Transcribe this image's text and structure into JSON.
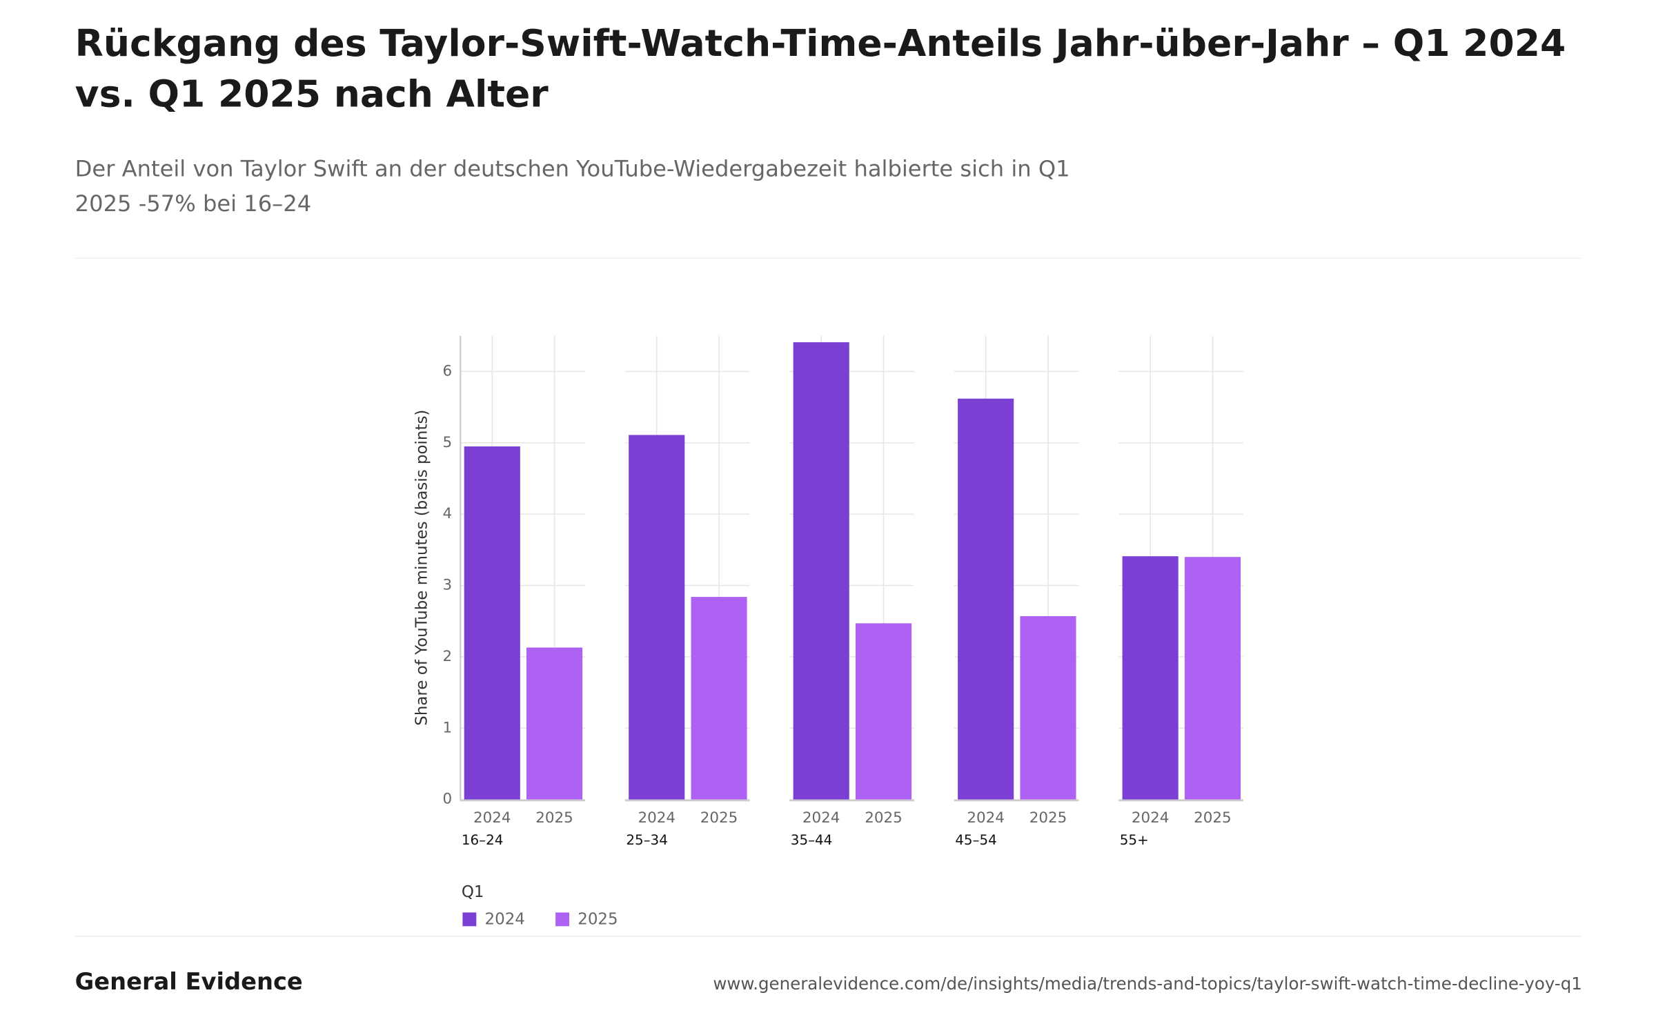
{
  "chart_data": {
    "type": "bar",
    "title": "Rückgang des Taylor-Swift-Watch-Time-Anteils Jahr-über-Jahr – Q1 2024 vs. Q1 2025 nach Alter",
    "subtitle": "Der Anteil von Taylor Swift an der deutschen YouTube-Wiedergabezeit halbierte sich in Q1 2025 -57% bei 16–24",
    "ylabel": "Share of YouTube minutes (basis points)",
    "categories": [
      "16–24",
      "25–34",
      "35–44",
      "45–54",
      "55+"
    ],
    "series": [
      {
        "name": "2024",
        "color": "#7b3fd4",
        "values": [
          4.95,
          5.11,
          6.41,
          5.62,
          3.41
        ]
      },
      {
        "name": "2025",
        "color": "#ad62f3",
        "values": [
          2.13,
          2.84,
          2.47,
          2.57,
          3.4
        ]
      }
    ],
    "ylim": [
      0,
      6.5
    ],
    "yticks": [
      0,
      1,
      2,
      3,
      4,
      5,
      6
    ],
    "grid": true,
    "legend_title": "Q1",
    "legend": "bottom-left"
  },
  "footer": {
    "brand": "General Evidence",
    "url": "www.generalevidence.com/de/insights/media/trends-and-topics/taylor-swift-watch-time-decline-yoy-q1"
  }
}
